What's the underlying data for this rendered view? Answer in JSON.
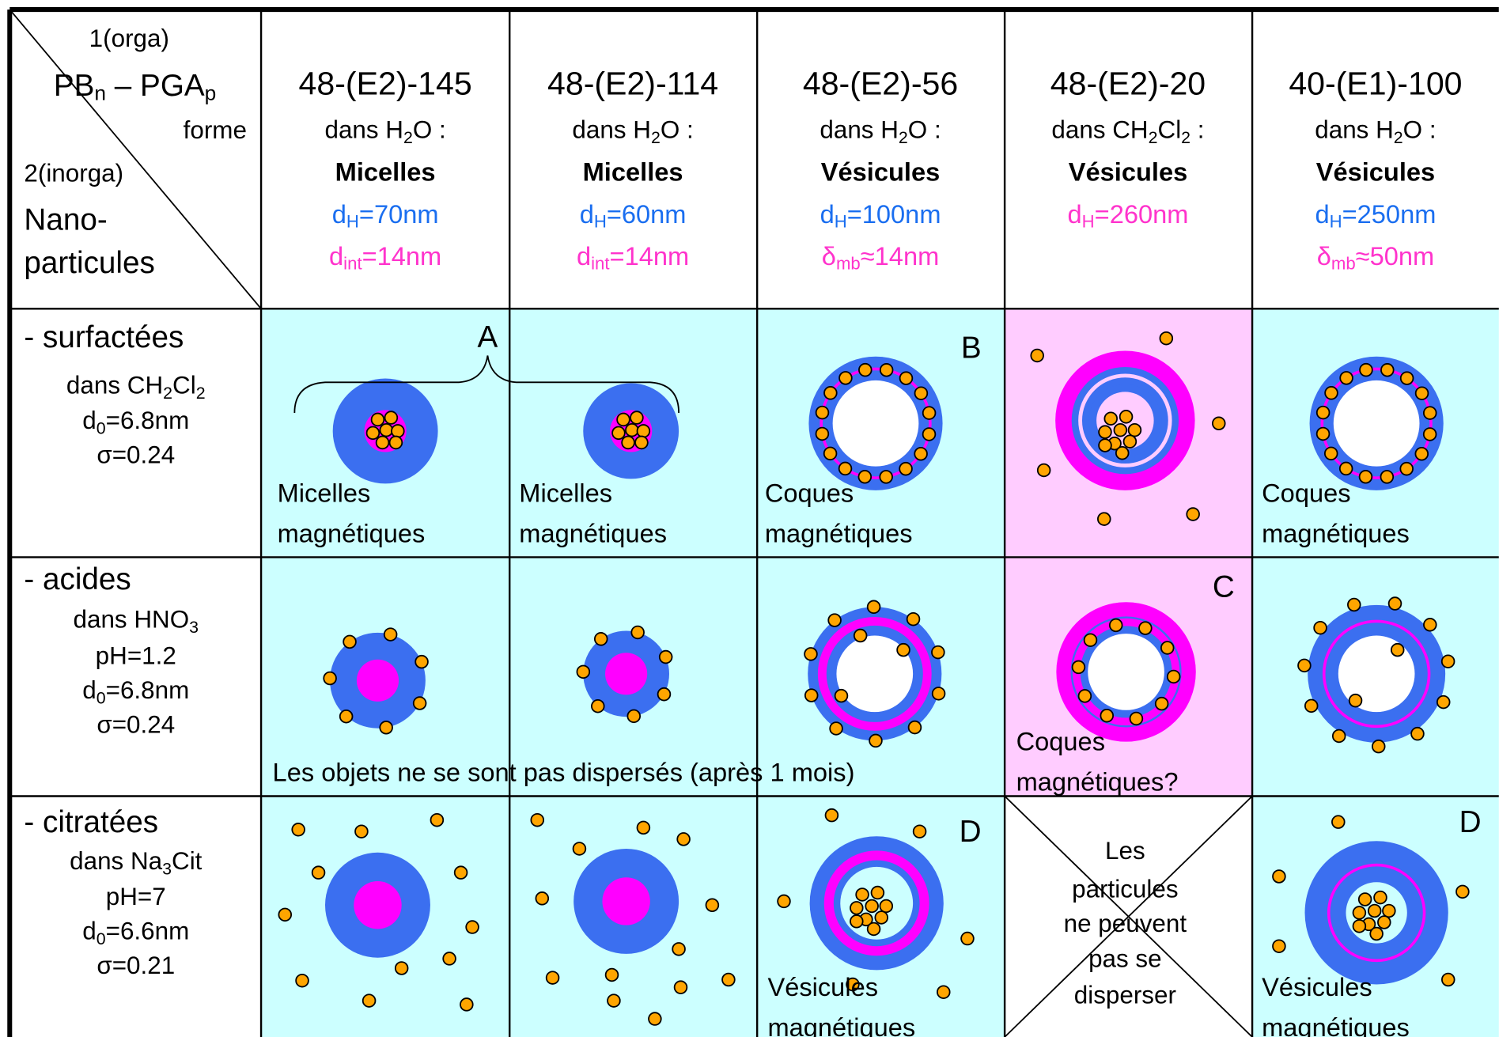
{
  "corner": {
    "organic": "1(orga)",
    "polymer": [
      "PB",
      "n",
      " – PGA",
      "p"
    ],
    "shape": "forme",
    "inorganic": "2(inorga)",
    "nanoparticles": [
      "Nano-",
      "particules"
    ]
  },
  "columns": [
    {
      "name": "48-(E2)-145",
      "solvent": [
        "dans H",
        "2",
        "O :"
      ],
      "morphology": "Micelles",
      "hydro_diameter": [
        "d",
        "H",
        "=70nm"
      ],
      "size": [
        "d",
        "int",
        "=14nm"
      ]
    },
    {
      "name": "48-(E2)-114",
      "solvent": [
        "dans H",
        "2",
        "O :"
      ],
      "morphology": "Micelles",
      "hydro_diameter": [
        "d",
        "H",
        "=60nm"
      ],
      "size": [
        "d",
        "int",
        "=14nm"
      ]
    },
    {
      "name": "48-(E2)-56",
      "solvent": [
        "dans H",
        "2",
        "O :"
      ],
      "morphology": "Vésicules",
      "hydro_diameter": [
        "d",
        "H",
        "=100nm"
      ],
      "size": [
        "δ",
        "mb",
        "≈14nm"
      ]
    },
    {
      "name": "48-(E2)-20",
      "solvent": [
        "dans CH",
        "2",
        "Cl",
        "2",
        " :"
      ],
      "morphology": "Vésicules",
      "hydro_diameter": [
        "d",
        "H",
        "=260nm"
      ]
    },
    {
      "name": "40-(E1)-100",
      "solvent": [
        "dans H",
        "2",
        "O :"
      ],
      "morphology": "Vésicules",
      "hydro_diameter": [
        "d",
        "H",
        "=250nm"
      ],
      "size": [
        "δ",
        "mb",
        "≈50nm"
      ]
    }
  ],
  "rows": [
    {
      "name": "- surfactées",
      "details": [
        [
          "dans CH",
          "2",
          "Cl",
          "2"
        ],
        [
          "d",
          "0",
          "=6.8nm"
        ],
        [
          "σ=0.24"
        ]
      ]
    },
    {
      "name": "- acides",
      "details": [
        [
          "dans HNO",
          "3"
        ],
        [
          "pH=1.2"
        ],
        [
          "d",
          "0",
          "=6.8nm"
        ],
        [
          "σ=0.24"
        ]
      ]
    },
    {
      "name": "- citratées",
      "details": [
        [
          "dans Na",
          "3",
          "Cit"
        ],
        [
          "pH=7"
        ],
        [
          "d",
          "0",
          "=6.6nm"
        ],
        [
          "σ=0.21"
        ]
      ]
    }
  ],
  "markers": {
    "a": "A",
    "b": "B",
    "c": "C",
    "d": "D"
  },
  "cell_labels": [
    [
      "Micelles",
      "magnétiques"
    ],
    [
      "Micelles",
      "magnétiques"
    ],
    [
      "Coques",
      "magnétiques"
    ],
    [
      "Coques",
      "magnétiques"
    ],
    [
      "Coques",
      "magnétiques?"
    ],
    [
      "Vésicules",
      "magnétiques"
    ],
    [
      "Vésicules",
      "magnétiques"
    ]
  ],
  "note": "Les objets ne se sont pas dispersés (après 1 mois)",
  "no_dispersion": [
    "Les",
    "particules",
    "ne peuvent",
    "pas se",
    "disperser"
  ]
}
